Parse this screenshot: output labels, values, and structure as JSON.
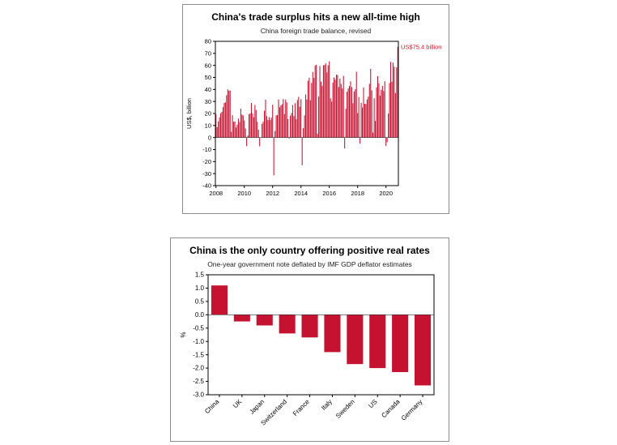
{
  "page": {
    "background": "#ffffff"
  },
  "chart_data": [
    {
      "type": "bar",
      "title": "China's trade surplus hits a new all-time high",
      "subtitle": "China foreign trade balance, revised",
      "ylabel": "US$, billion",
      "ylim": [
        -40,
        80
      ],
      "ytick_labels": [
        "80",
        "70",
        "60",
        "50",
        "40",
        "30",
        "20",
        "10",
        "0",
        "-10",
        "-20",
        "-30",
        "-40"
      ],
      "xtick_labels": [
        "2008",
        "2010",
        "2012",
        "2014",
        "2016",
        "2018",
        "2020"
      ],
      "xtick_indices": [
        0,
        24,
        48,
        72,
        96,
        120,
        144
      ],
      "bar_color": "#c41230",
      "annotation": {
        "text": "US$75.4 billion",
        "value": 75.4,
        "color": "#d7182a"
      },
      "values": [
        19.4,
        8.6,
        13.4,
        16.7,
        20.2,
        21.4,
        25.3,
        28.7,
        29.3,
        35.2,
        40.1,
        39.0,
        39.1,
        4.8,
        18.6,
        13.1,
        13.4,
        8.3,
        10.6,
        15.7,
        12.9,
        24.0,
        19.1,
        18.4,
        14.2,
        7.6,
        -7.2,
        1.7,
        19.5,
        20.0,
        28.7,
        20.0,
        16.9,
        27.1,
        22.9,
        13.1,
        6.5,
        -7.3,
        0.1,
        11.4,
        13.1,
        22.3,
        31.5,
        17.8,
        14.5,
        17.0,
        14.5,
        16.5,
        27.3,
        -31.5,
        5.4,
        18.4,
        18.7,
        31.7,
        25.1,
        26.7,
        27.7,
        32.0,
        19.6,
        31.6,
        29.2,
        15.3,
        -0.9,
        18.2,
        20.4,
        27.1,
        17.8,
        28.5,
        15.2,
        31.1,
        33.8,
        25.6,
        31.9,
        -23.0,
        7.7,
        18.5,
        35.9,
        31.6,
        47.3,
        49.8,
        31.0,
        45.4,
        54.5,
        49.6,
        60.0,
        60.6,
        3.1,
        34.1,
        59.5,
        46.5,
        43.0,
        60.2,
        60.3,
        61.6,
        54.1,
        60.1,
        63.3,
        32.6,
        29.9,
        45.6,
        50.0,
        48.1,
        52.3,
        52.0,
        42.0,
        49.1,
        44.6,
        40.8,
        51.3,
        -9.1,
        23.9,
        38.1,
        40.8,
        42.8,
        46.7,
        42.0,
        28.5,
        38.2,
        40.2,
        54.7,
        20.3,
        33.7,
        -5.0,
        28.8,
        24.9,
        41.6,
        28.1,
        27.9,
        31.7,
        34.0,
        44.7,
        57.1,
        39.2,
        4.1,
        32.6,
        13.8,
        41.7,
        51.0,
        45.1,
        34.8,
        39.7,
        43.0,
        38.7,
        46.8,
        -7.1,
        -3.9,
        19.9,
        45.3,
        62.9,
        46.4,
        62.3,
        58.9,
        37.0,
        58.4,
        75.4
      ]
    },
    {
      "type": "bar",
      "title": "China is the only country offering positive real rates",
      "subtitle": "One-year government note deflated by IMF GDP deflator estimates",
      "ylabel": "%",
      "ylim": [
        -3.0,
        1.5
      ],
      "ytick_labels": [
        "1.5",
        "1.0",
        "0.5",
        "0.0",
        "-0.5",
        "-1.0",
        "-1.5",
        "-2.0",
        "-2.5",
        "-3.0"
      ],
      "categories": [
        "China",
        "UK",
        "Japan",
        "Switzerland",
        "France",
        "Italy",
        "Sweden",
        "US",
        "Canada",
        "Germany"
      ],
      "values": [
        1.1,
        -0.25,
        -0.4,
        -0.7,
        -0.85,
        -1.4,
        -1.85,
        -2.0,
        -2.15,
        -2.65
      ],
      "bar_color": "#c41230"
    }
  ]
}
